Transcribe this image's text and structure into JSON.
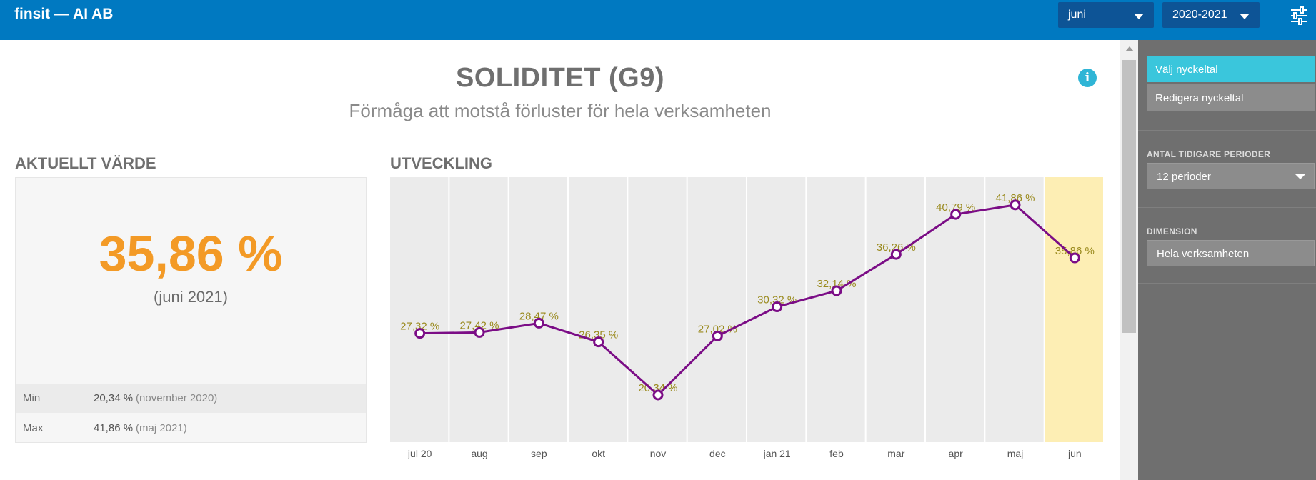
{
  "header": {
    "app_title": "finsit — AI AB",
    "month_select": "juni",
    "year_select": "2020-2021",
    "settings_icon": "sliders-icon"
  },
  "main": {
    "title": "SOLIDITET (G9)",
    "subtitle": "Förmåga att motstå förluster för hela verksamheten",
    "info_icon": "info-icon",
    "current": {
      "heading": "AKTUELLT VÄRDE",
      "value": "35,86 %",
      "period": "(juni 2021)",
      "min_label": "Min",
      "min_value": "20,34 %",
      "min_period": "(november 2020)",
      "max_label": "Max",
      "max_value": "41,86 %",
      "max_period": "(maj 2021)"
    },
    "trend_heading": "UTVECKLING"
  },
  "chart_data": {
    "type": "line",
    "categories": [
      "jul 20",
      "aug",
      "sep",
      "okt",
      "nov",
      "dec",
      "jan 21",
      "feb",
      "mar",
      "apr",
      "maj",
      "jun"
    ],
    "series": [
      {
        "name": "Soliditet",
        "values": [
          27.32,
          27.42,
          28.47,
          26.35,
          20.34,
          27.02,
          30.32,
          32.14,
          36.26,
          40.79,
          41.86,
          35.86
        ],
        "labels": [
          "27,32 %",
          "27,42 %",
          "28,47 %",
          "26,35 %",
          "20,34 %",
          "27,02 %",
          "30,32 %",
          "32,14 %",
          "36,26 %",
          "40,79 %",
          "41,86 %",
          "35,86 %"
        ]
      }
    ],
    "highlighted_category": "jun",
    "ylim": [
      15,
      45
    ],
    "title": "",
    "xlabel": "",
    "ylabel": "",
    "colors": {
      "line": "#7b0d86",
      "label": "#9a8a1e",
      "band": "#ebebeb",
      "highlight": "#fdeeb4"
    }
  },
  "sidebar": {
    "choose_button": "Välj nyckeltal",
    "edit_button": "Redigera nyckeltal",
    "periods_label": "ANTAL TIDIGARE PERIODER",
    "periods_value": "12 perioder",
    "dimension_label": "DIMENSION",
    "dimension_value": "Hela verksamheten"
  },
  "colors": {
    "header": "#0079c1",
    "accent": "#3ac6dc",
    "value": "#f39a26",
    "sidebar": "#6f6f6f"
  }
}
